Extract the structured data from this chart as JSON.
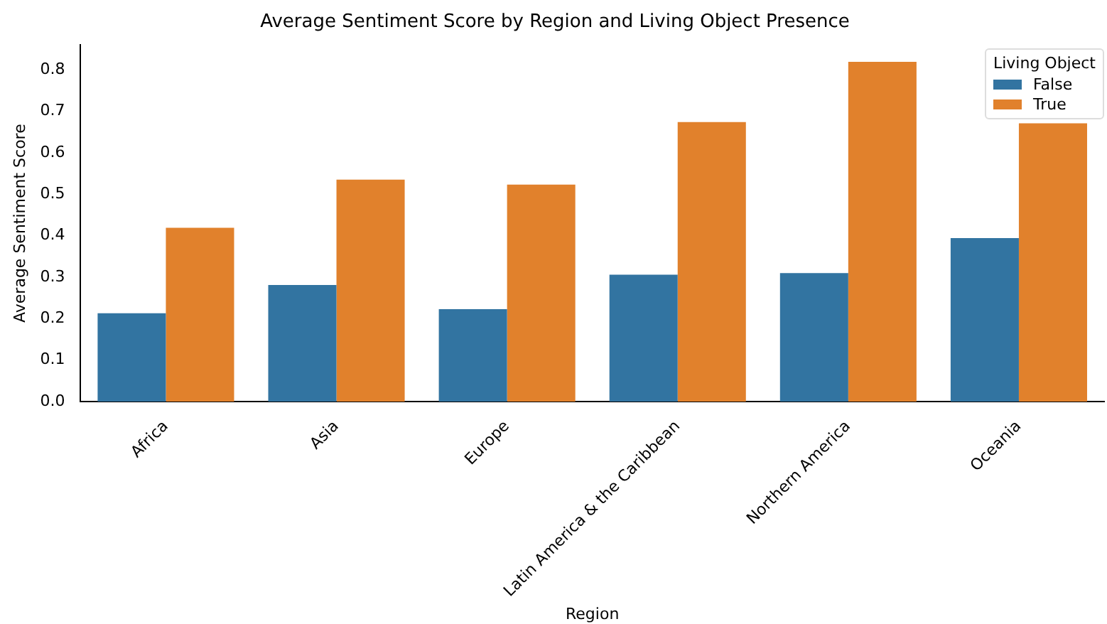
{
  "chart_data": {
    "type": "bar",
    "title": "Average Sentiment Score by Region and Living Object Presence",
    "xlabel": "Region",
    "ylabel": "Average Sentiment Score",
    "legend_title": "Living Object",
    "legend": "top right",
    "grid": false,
    "categories": [
      "Africa",
      "Asia",
      "Europe",
      "Latin America & the Caribbean",
      "Northern America",
      "Oceania"
    ],
    "series": [
      {
        "name": "False",
        "color": "#3274a1",
        "values": [
          0.213,
          0.281,
          0.223,
          0.306,
          0.31,
          0.394
        ]
      },
      {
        "name": "True",
        "color": "#e1812c",
        "values": [
          0.419,
          0.535,
          0.523,
          0.674,
          0.819,
          0.671
        ]
      }
    ],
    "ylim": [
      0,
      0.86
    ],
    "yticks": [
      {
        "value": 0,
        "label": "0.0"
      },
      0.1,
      0.2,
      0.3,
      0.4,
      0.5,
      0.6,
      0.7,
      0.8
    ]
  }
}
